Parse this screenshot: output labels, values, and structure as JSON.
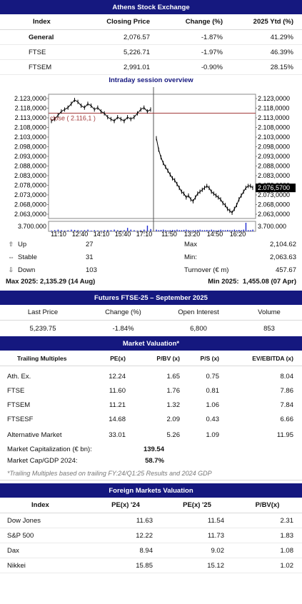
{
  "exchange": {
    "title": "Athens Stock Exchange",
    "headers": [
      "Index",
      "Closing Price",
      "Change (%)",
      "2025 Ytd (%)"
    ],
    "rows": [
      {
        "name": "General",
        "price": "2,076.57",
        "change": "-1.87%",
        "ytd": "41.29%"
      },
      {
        "name": "FTSE",
        "price": "5,226.71",
        "change": "-1.97%",
        "ytd": "46.39%"
      },
      {
        "name": "FTSEM",
        "price": "2,991.01",
        "change": "-0.90%",
        "ytd": "28.15%"
      }
    ]
  },
  "intraday": {
    "title": "Intraday session overview",
    "close_label": "close ( 2.116,1 )",
    "last_value_label": "2.076,5700",
    "volume_label": "3.700.000",
    "stats": {
      "up_label": "Up",
      "up": "27",
      "stable_label": "Stable",
      "stable": "31",
      "down_label": "Down",
      "down": "103",
      "max_label": "Max",
      "max": "2,104.62",
      "min_label": "Min:",
      "min": "2,063.63",
      "turnover_label": "Turnover (€ m)",
      "turnover": "457.67"
    },
    "max_2025": "Max 2025: 2,135.29 (14 Aug)",
    "min_2025_label": "Min 2025:",
    "min_2025": "1,455.08 (07 Apr)"
  },
  "chart_data": {
    "type": "line",
    "y_tick_labels": [
      "2.123,0000",
      "2.118,0000",
      "2.113,0000",
      "2.108,0000",
      "2.103,0000",
      "2.098,0000",
      "2.093,0000",
      "2.088,0000",
      "2.083,0000",
      "2.078,0000",
      "2.073,0000",
      "2.068,0000",
      "2.063,0000"
    ],
    "ylim": [
      2061,
      2126
    ],
    "x_tick_labels": [
      "11:10",
      "12:40",
      "14:10",
      "15:40",
      "17:10",
      "11:50",
      "13:20",
      "14:50",
      "16:20"
    ],
    "previous_close": 2116.1,
    "series": [
      {
        "values": [
          2112,
          2113,
          2115,
          2117,
          2118,
          2119,
          2121,
          2123,
          2122,
          2120,
          2119,
          2121,
          2120,
          2118,
          2119,
          2117,
          2116,
          2114,
          2113,
          2112,
          2114,
          2113,
          2112,
          2114,
          2113,
          2114,
          2116,
          2118,
          2119,
          2117,
          2118
        ]
      },
      {
        "values": [
          2103,
          2097,
          2093,
          2090,
          2088,
          2086,
          2084,
          2082,
          2081,
          2079,
          2077,
          2075,
          2074,
          2072,
          2073,
          2071,
          2070,
          2072,
          2074,
          2075,
          2076,
          2077,
          2078,
          2077,
          2075,
          2074,
          2073,
          2072,
          2071,
          2069,
          2068,
          2066,
          2065,
          2064,
          2066,
          2068,
          2071,
          2073,
          2075,
          2077,
          2078,
          2078,
          2077
        ]
      }
    ],
    "volume_series": [
      [
        0.1,
        0.2,
        0.3,
        0.2,
        0.1,
        0.2,
        0.3,
        0.25,
        0.2,
        0.15,
        0.2,
        0.3,
        0.1,
        0.2,
        0.15,
        0.1,
        0.2,
        0.25,
        0.2,
        0.3,
        0.2,
        0.15,
        0.2,
        0.6,
        0.3,
        0.2,
        0.1,
        0.2,
        0.3,
        1.0,
        0.4
      ],
      [
        0.3,
        0.2,
        0.25,
        0.3,
        0.2,
        0.15,
        0.2,
        0.25,
        0.2,
        0.3,
        0.2,
        0.2,
        0.25,
        0.3,
        0.2,
        0.15,
        0.2,
        0.2,
        0.25,
        0.3,
        0.2,
        0.2,
        0.25,
        0.2,
        0.3,
        0.2,
        0.15,
        0.2,
        0.3,
        0.2,
        0.2,
        0.25,
        0.2,
        0.2,
        0.3,
        0.2,
        0.25,
        0.2,
        0.3,
        1.5,
        0.2,
        0.2,
        0.3
      ]
    ],
    "colors": {
      "line": "#000000",
      "close_line": "#a33a3a",
      "volume": "#1f2bd1",
      "frame": "#888888",
      "session_divider": "#555555"
    }
  },
  "futures": {
    "title": "Futures FTSE-25 – September 2025",
    "headers": [
      "Last Price",
      "Change (%)",
      "Open Interest",
      "Volume"
    ],
    "row": [
      "5,239.75",
      "-1.84%",
      "6,800",
      "853"
    ]
  },
  "valuation": {
    "title": "Market Valuation*",
    "headers": [
      "Trailing Multiples",
      "PE(x)",
      "P/BV (x)",
      "P/S (x)",
      "EV/EBITDA (x)"
    ],
    "rows": [
      [
        "Ath. Ex.",
        "12.24",
        "1.65",
        "0.75",
        "8.04"
      ],
      [
        "FTSE",
        "11.60",
        "1.76",
        "0.81",
        "7.86"
      ],
      [
        "FTSEM",
        "11.21",
        "1.32",
        "1.06",
        "7.84"
      ],
      [
        "FTSESF",
        "14.68",
        "2.09",
        "0.43",
        "6.66"
      ],
      [
        "Alternative Market",
        "33.01",
        "5.26",
        "1.09",
        "11.95"
      ]
    ],
    "market_cap_label": "Market Capitalization (€ bn):",
    "market_cap": "139.54",
    "cap_gdp_label": "Market Cap/GDP 2024:",
    "cap_gdp": "58.7%",
    "note": "*Trailing Multiples based on trailing FY:24/Q1:25 Results and 2024 GDP"
  },
  "foreign": {
    "title": "Foreign Markets Valuation",
    "headers": [
      "Index",
      "PE(x) '24",
      "PE(x) '25",
      "P/BV(x)"
    ],
    "rows": [
      [
        "Dow Jones",
        "11.63",
        "11.54",
        "2.31"
      ],
      [
        "S&P 500",
        "12.22",
        "11.73",
        "1.83"
      ],
      [
        "Dax",
        "8.94",
        "9.02",
        "1.08"
      ],
      [
        "Nikkei",
        "15.85",
        "15.12",
        "1.02"
      ]
    ]
  }
}
